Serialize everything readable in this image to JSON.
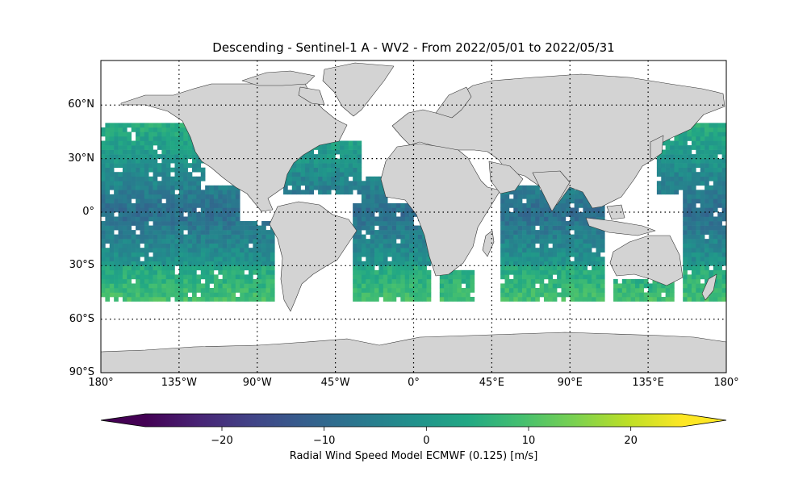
{
  "title": "Descending - Sentinel-1 A - WV2 - From 2022/05/01 to 2022/05/31",
  "map": {
    "projection": "equirectangular",
    "lon_range": [
      -180,
      180
    ],
    "lat_range": [
      -90,
      85
    ],
    "lat_ticks": [
      {
        "value": 60,
        "label": "60°N"
      },
      {
        "value": 30,
        "label": "30°N"
      },
      {
        "value": 0,
        "label": "0°"
      },
      {
        "value": -30,
        "label": "30°S"
      },
      {
        "value": -60,
        "label": "60°S"
      },
      {
        "value": -90,
        "label": "90°S"
      }
    ],
    "lon_ticks": [
      {
        "value": -180,
        "label": "180°"
      },
      {
        "value": -135,
        "label": "135°W"
      },
      {
        "value": -90,
        "label": "90°W"
      },
      {
        "value": -45,
        "label": "45°W"
      },
      {
        "value": 0,
        "label": "0°"
      },
      {
        "value": 45,
        "label": "45°E"
      },
      {
        "value": 90,
        "label": "90°E"
      },
      {
        "value": 135,
        "label": "135°E"
      },
      {
        "value": 180,
        "label": "180°"
      }
    ],
    "gridlines": "dotted",
    "land_color": "#d3d3d3",
    "coast_color": "#333333",
    "data_lat_range": [
      -50,
      50
    ]
  },
  "colorbar": {
    "colormap": "viridis",
    "range": [
      -27.5,
      25
    ],
    "ticks": [
      {
        "value": -20,
        "label": "−20"
      },
      {
        "value": -10,
        "label": "−10"
      },
      {
        "value": 0,
        "label": "0"
      },
      {
        "value": 10,
        "label": "10"
      },
      {
        "value": 20,
        "label": "20"
      }
    ],
    "extend": "both",
    "label": "Radial Wind Speed Model ECMWF (0.125) [m/s]"
  }
}
